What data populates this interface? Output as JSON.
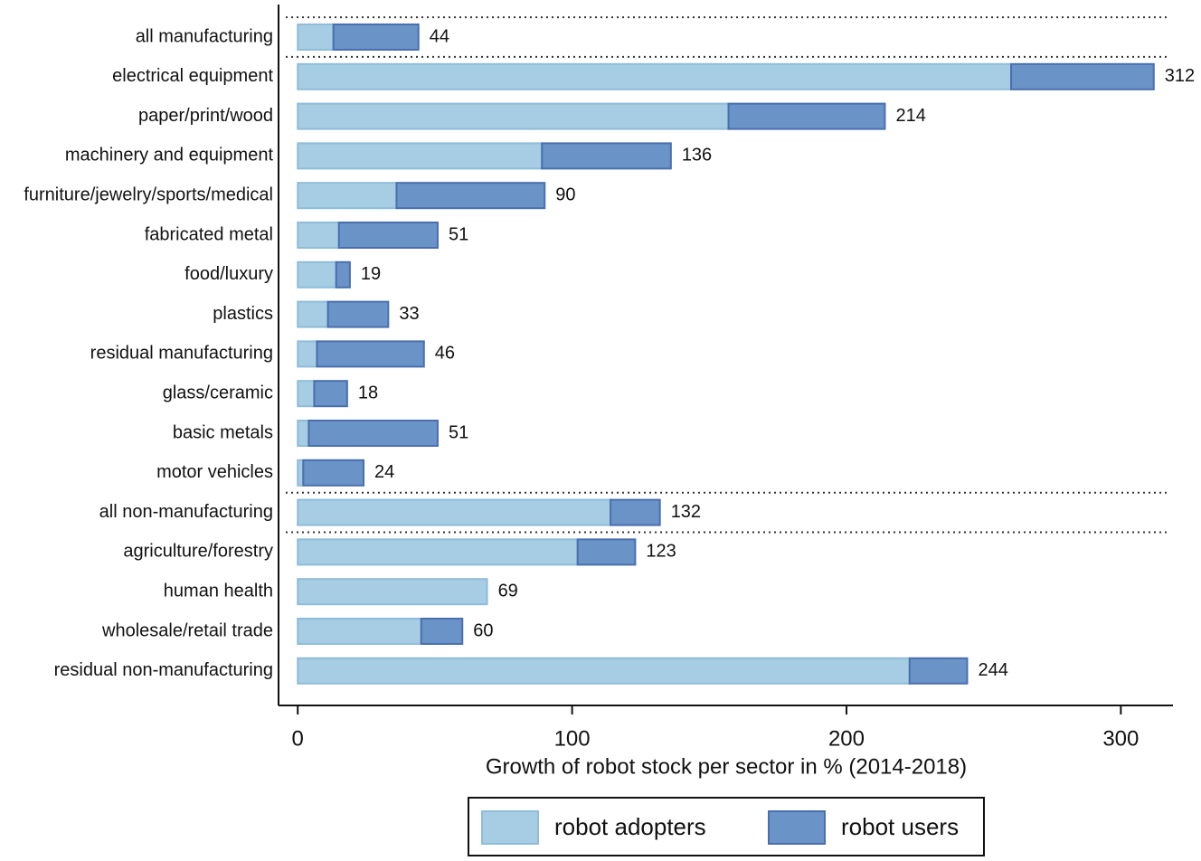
{
  "chart_data": {
    "type": "bar",
    "orientation": "horizontal",
    "stacked": true,
    "x_label": "Growth of robot stock per sector in % (2014-2018)",
    "categories": [
      "all manufacturing",
      "electrical equipment",
      "paper/print/wood",
      "machinery and equipment",
      "furniture/jewelry/sports/medical",
      "fabricated metal",
      "food/luxury",
      "plastics",
      "residual manufacturing",
      "glass/ceramic",
      "basic metals",
      "motor vehicles",
      "all non-manufacturing",
      "agriculture/forestry",
      "human health",
      "wholesale/retail trade",
      "residual non-manufacturing"
    ],
    "series": [
      {
        "name": "robot adopters",
        "color": "#a6cde3",
        "values": [
          13,
          260,
          157,
          89,
          36,
          15,
          14,
          11,
          7,
          6,
          4,
          2,
          114,
          102,
          69,
          45,
          223
        ]
      },
      {
        "name": "robot users",
        "color": "#6a93c8",
        "values": [
          31,
          52,
          57,
          47,
          54,
          36,
          5,
          22,
          39,
          12,
          47,
          22,
          18,
          21,
          0,
          15,
          21
        ]
      }
    ],
    "totals": [
      44,
      312,
      214,
      136,
      90,
      51,
      19,
      33,
      46,
      18,
      51,
      24,
      132,
      123,
      69,
      60,
      244
    ],
    "xlim": [
      -7,
      319
    ],
    "xticks": [
      0,
      100,
      200,
      300
    ],
    "grid": false,
    "legend": "bottom"
  }
}
